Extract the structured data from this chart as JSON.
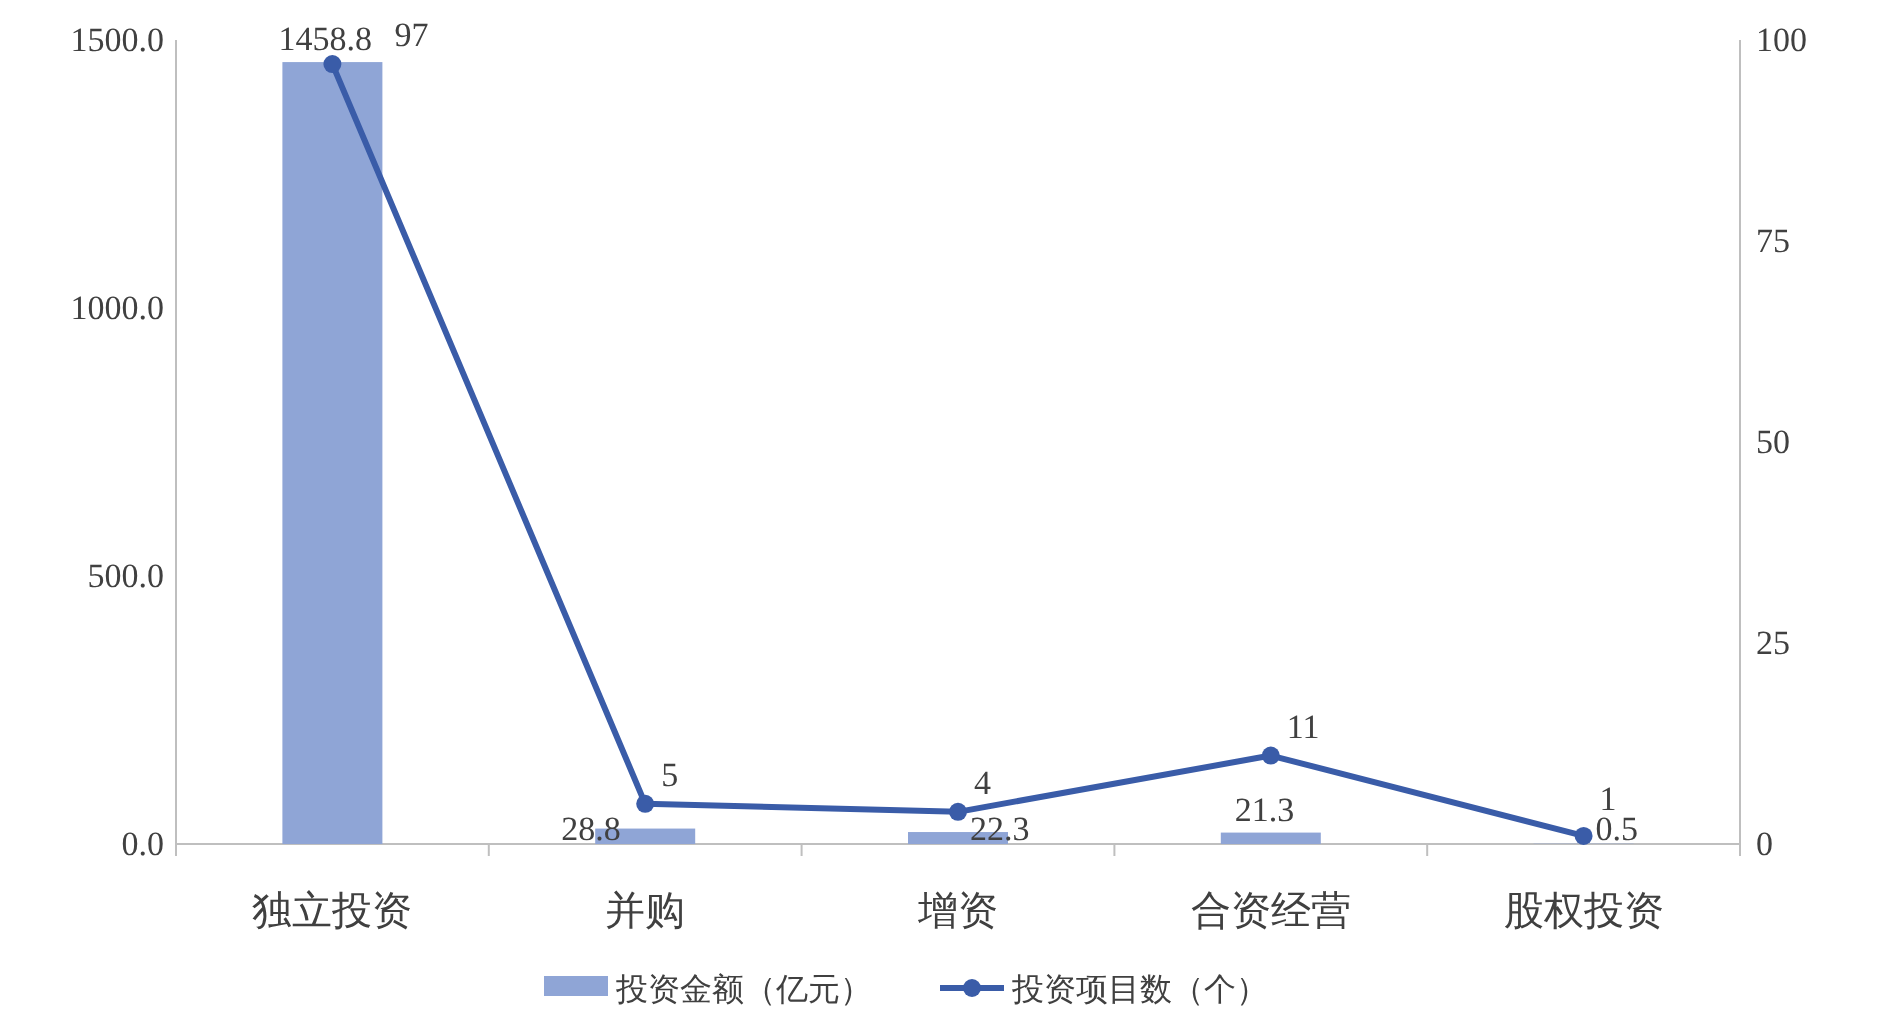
{
  "chart_data": {
    "type": "bar",
    "categories": [
      "独立投资",
      "并购",
      "增资",
      "合资经营",
      "股权投资"
    ],
    "series": [
      {
        "name": "投资金额（亿元）",
        "type": "bar",
        "color": "#8fa5d6",
        "values": [
          1458.8,
          28.8,
          22.3,
          21.3,
          0.5
        ]
      },
      {
        "name": "投资项目数（个）",
        "type": "line",
        "axis": "y2",
        "color": "#3a5ca8",
        "values": [
          97,
          5,
          4,
          11,
          1
        ]
      }
    ],
    "ylim": [
      0,
      1500
    ],
    "yticks": [
      {
        "value": 0,
        "label": "0.0"
      },
      {
        "value": 500,
        "label": "500.0"
      },
      {
        "value": 1000,
        "label": "1000.0"
      },
      {
        "value": 1500,
        "label": "1500.0"
      }
    ],
    "y2lim": [
      0,
      100
    ],
    "y2ticks": [
      0,
      25,
      50,
      75,
      100
    ],
    "data_labels": true,
    "legend": "bottom",
    "marker": "circle",
    "grid": false
  }
}
